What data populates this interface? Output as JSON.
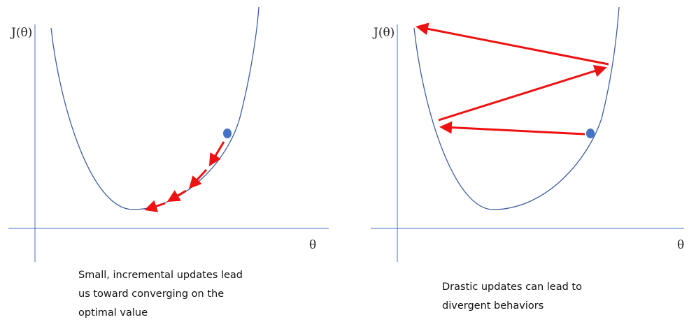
{
  "panels": [
    {
      "y_label": "J(θ)",
      "x_label": "θ",
      "caption": [
        "Small, incremental updates lead",
        "us toward converging on the",
        "optimal value"
      ]
    },
    {
      "y_label": "J(θ)",
      "x_label": "θ",
      "caption": [
        "Drastic updates can lead to",
        "divergent behaviors"
      ]
    }
  ]
}
